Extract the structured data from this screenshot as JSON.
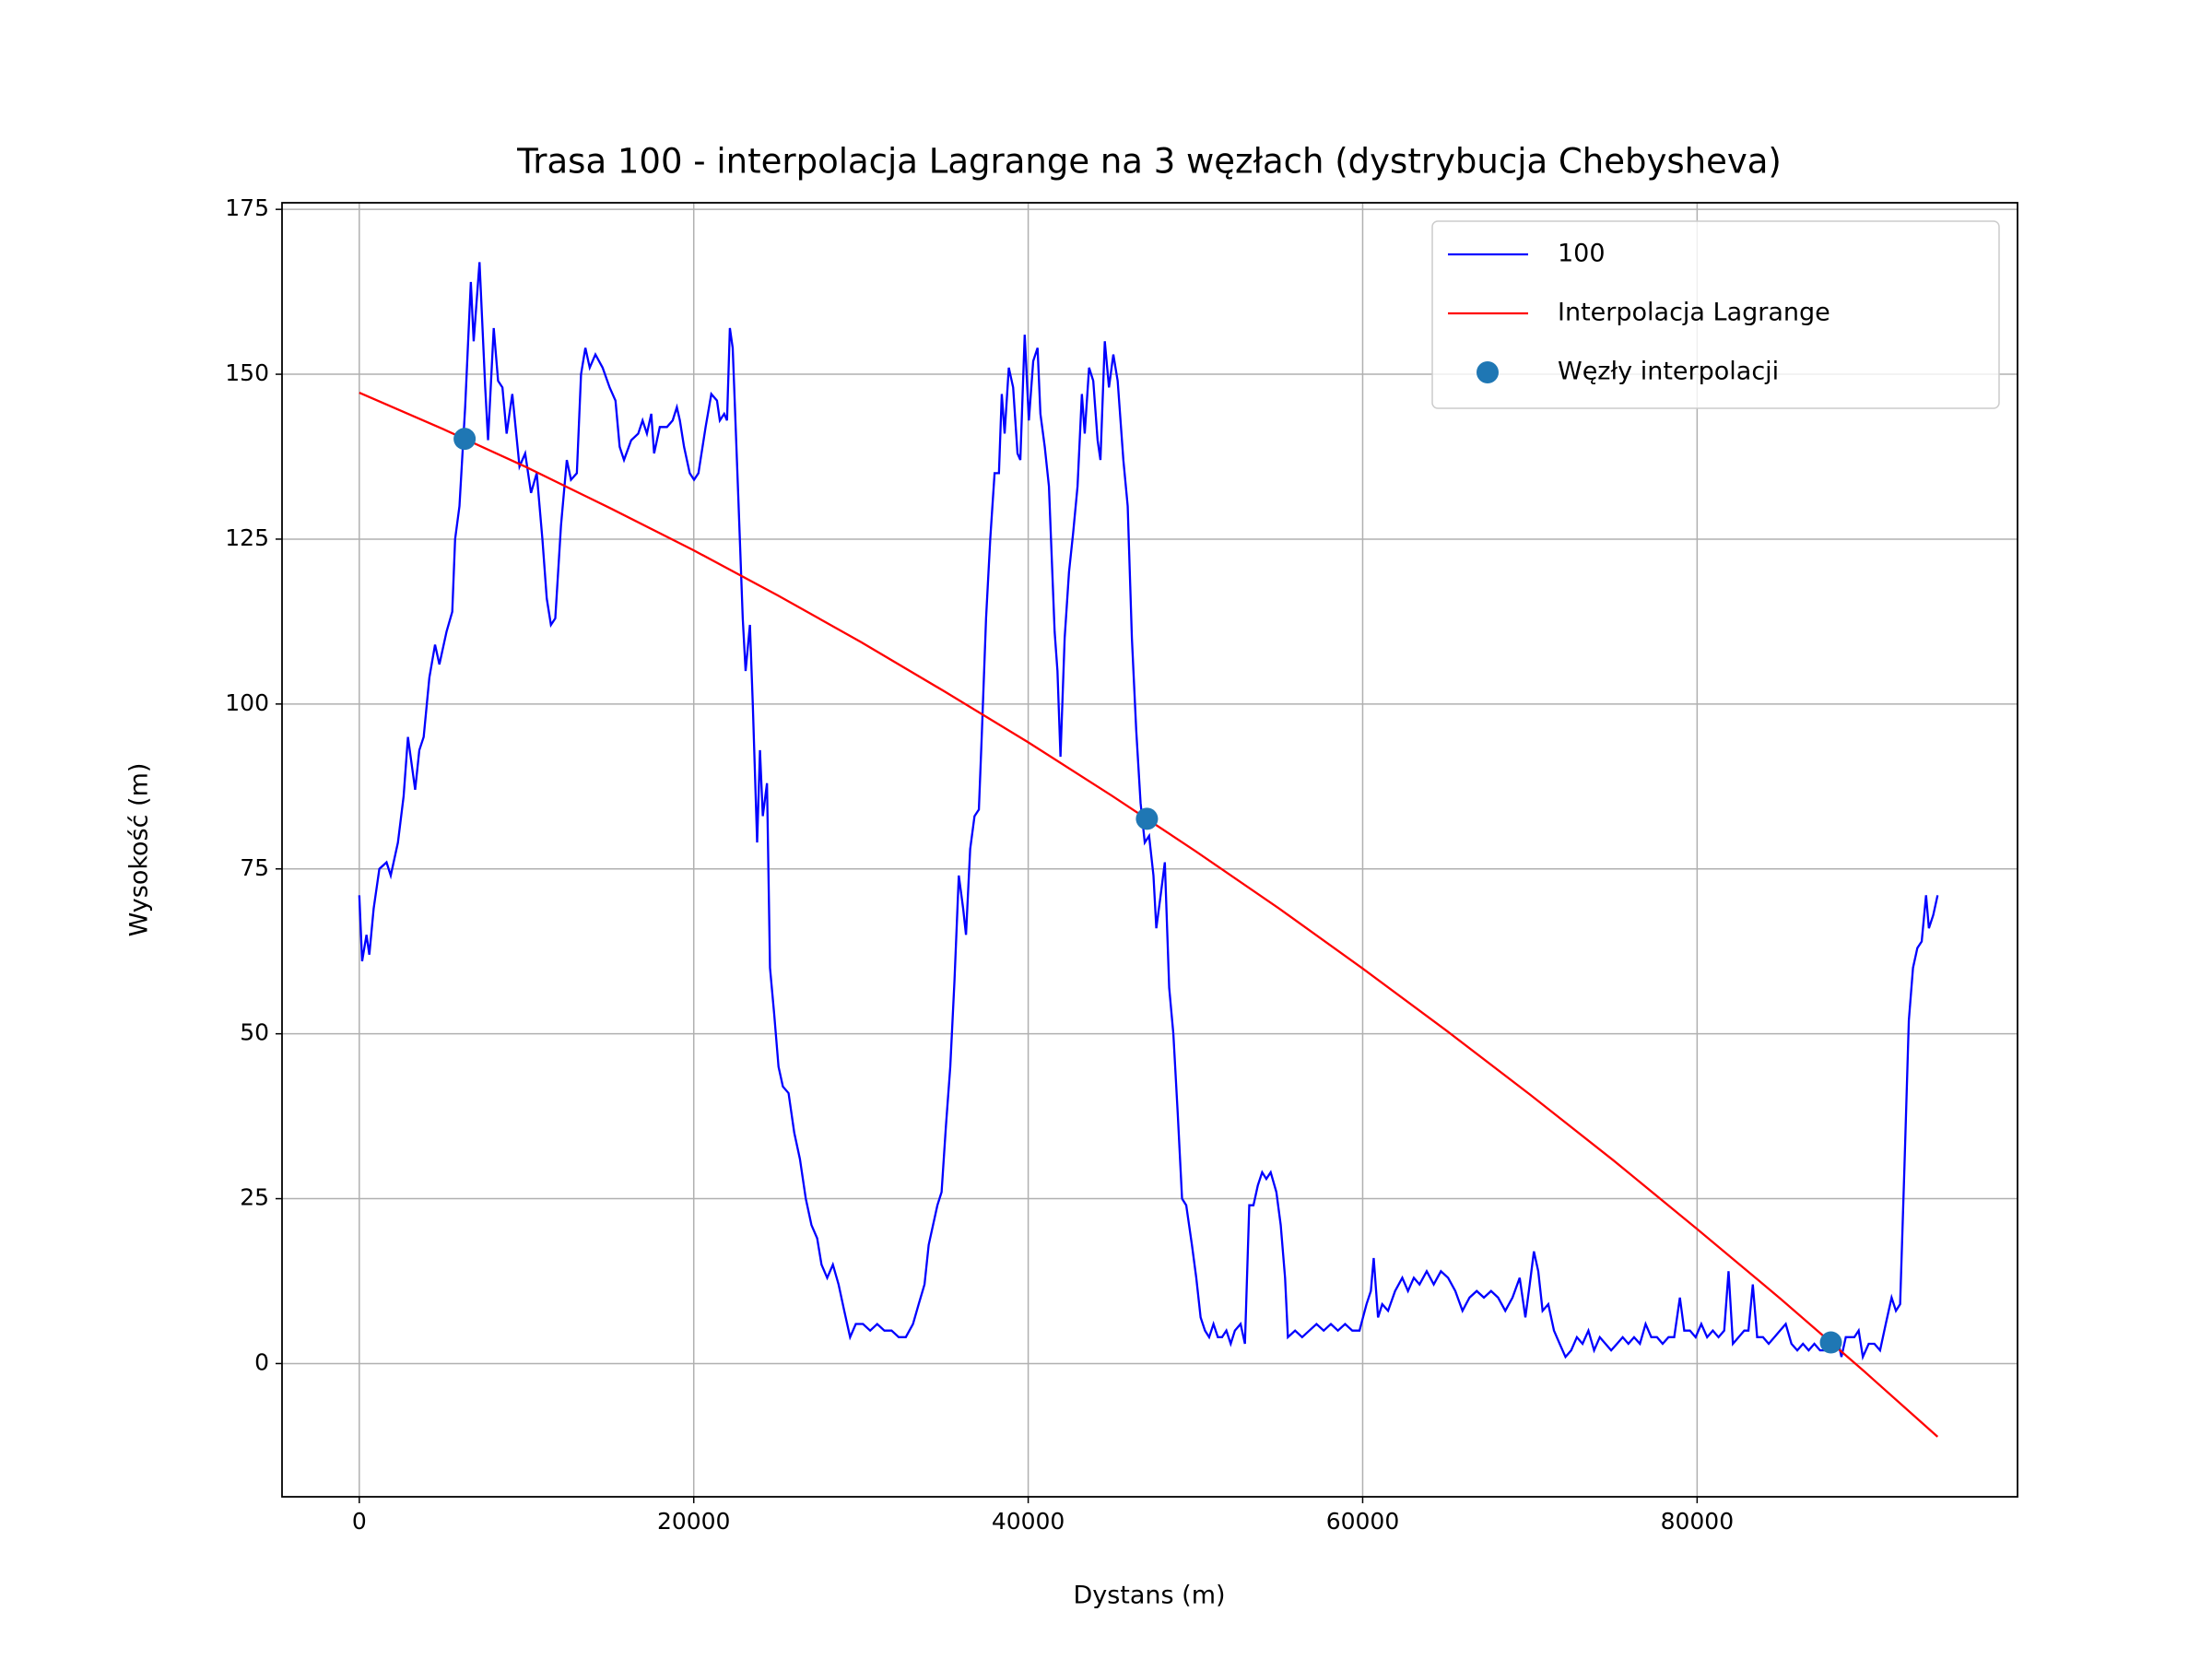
{
  "chart_data": {
    "type": "line",
    "title": "Trasa 100 - interpolacja Lagrange na 3 węzłach (dystrybucja Chebysheva)",
    "xlabel": "Dystans (m)",
    "ylabel": "Wysokość (m)",
    "xlim": [
      -4620,
      99160
    ],
    "ylim": [
      -20.2,
      176
    ],
    "xticks": [
      0,
      20000,
      40000,
      60000,
      80000
    ],
    "yticks": [
      0,
      25,
      50,
      75,
      100,
      125,
      150,
      175
    ],
    "grid": true,
    "legend": "upper right",
    "series": [
      {
        "name": "100",
        "type": "line",
        "color": "#0000ff",
        "x": [
          0,
          170,
          430,
          600,
          860,
          1200,
          1630,
          1880,
          2310,
          2650,
          2910,
          3340,
          3590,
          3850,
          4190,
          4530,
          4790,
          5220,
          5560,
          5730,
          5990,
          6330,
          6670,
          6840,
          7190,
          7530,
          7700,
          8040,
          8300,
          8560,
          8810,
          9150,
          9580,
          9920,
          10270,
          10610,
          10950,
          11210,
          11460,
          11720,
          12060,
          12410,
          12660,
          13010,
          13260,
          13520,
          13780,
          14120,
          14550,
          14970,
          15320,
          15570,
          15830,
          16260,
          16680,
          16940,
          17200,
          17460,
          17630,
          17970,
          18400,
          18740,
          18990,
          19170,
          19420,
          19760,
          20020,
          20280,
          20710,
          21050,
          21390,
          21560,
          21820,
          21990,
          22160,
          22330,
          22670,
          22930,
          23100,
          23360,
          23530,
          23790,
          23960,
          24130,
          24380,
          24560,
          24810,
          25070,
          25330,
          25670,
          26010,
          26350,
          26700,
          27040,
          27380,
          27640,
          27980,
          28320,
          28660,
          29000,
          29350,
          29690,
          30120,
          30550,
          30970,
          31400,
          31830,
          32260,
          32680,
          33110,
          33450,
          33800,
          34050,
          34310,
          34570,
          34820,
          35080,
          35340,
          35590,
          35850,
          36110,
          36280,
          36530,
          36790,
          37050,
          37220,
          37480,
          37730,
          37990,
          38250,
          38420,
          38590,
          38840,
          39100,
          39360,
          39530,
          39790,
          40040,
          40300,
          40560,
          40730,
          40990,
          41240,
          41580,
          41750,
          41930,
          42180,
          42440,
          42690,
          42950,
          43210,
          43380,
          43640,
          43890,
          44150,
          44320,
          44580,
          44830,
          45090,
          45350,
          45690,
          45950,
          46200,
          46460,
          46720,
          46970,
          47230,
          47490,
          47660,
          47920,
          48170,
          48430,
          48680,
          48940,
          49200,
          49450,
          49790,
          50050,
          50310,
          50570,
          50820,
          51080,
          51340,
          51590,
          51850,
          52110,
          52360,
          52700,
          52960,
          53220,
          53470,
          53730,
          53990,
          54240,
          54500,
          54840,
          55100,
          55360,
          55530,
          55960,
          56380,
          56810,
          57240,
          57670,
          58100,
          58520,
          58950,
          59380,
          59810,
          60230,
          60490,
          60660,
          60920,
          61170,
          61520,
          61940,
          62370,
          62710,
          63060,
          63400,
          63830,
          64250,
          64680,
          65110,
          65540,
          65970,
          66390,
          66820,
          67250,
          67680,
          68100,
          68530,
          68960,
          69390,
          69730,
          69990,
          70240,
          70500,
          70760,
          71100,
          71440,
          71780,
          72130,
          72470,
          72810,
          73150,
          73500,
          73840,
          74180,
          74520,
          74860,
          75210,
          75550,
          75890,
          76230,
          76580,
          76920,
          77260,
          77600,
          77940,
          78290,
          78630,
          78970,
          79230,
          79570,
          79910,
          80250,
          80600,
          80940,
          81280,
          81620,
          81880,
          82140,
          82480,
          82820,
          83070,
          83330,
          83590,
          83940,
          84280,
          84620,
          84960,
          85300,
          85640,
          85990,
          86330,
          86670,
          87010,
          87350,
          87690,
          88040,
          88380,
          88630,
          88890,
          89140,
          89400,
          89660,
          89910,
          90260,
          90600,
          90940,
          91280,
          91630,
          91890,
          92140,
          92400,
          92660,
          92910,
          93170,
          93430,
          93690,
          93860,
          94120,
          94380
        ],
        "values": [
          71,
          61,
          65,
          62,
          69,
          75,
          76,
          74,
          79,
          86,
          95,
          87,
          93,
          95,
          104,
          109,
          106,
          111,
          114,
          125,
          130,
          145,
          164,
          155,
          167,
          148,
          140,
          157,
          149,
          148,
          141,
          147,
          136,
          138,
          132,
          135,
          125,
          116,
          112,
          113,
          127,
          137,
          134,
          135,
          150,
          154,
          151,
          153,
          151,
          148,
          146,
          139,
          137,
          140,
          141,
          143,
          141,
          144,
          138,
          142,
          142,
          143,
          145,
          143,
          139,
          135,
          134,
          135,
          142,
          147,
          146,
          143,
          144,
          143,
          157,
          154,
          131,
          113,
          105,
          112,
          100,
          79,
          93,
          83,
          88,
          60,
          53,
          45,
          42,
          41,
          35,
          31,
          25,
          21,
          19,
          15,
          13,
          15,
          12,
          8,
          4,
          6,
          6,
          5,
          6,
          5,
          5,
          4,
          4,
          6,
          9,
          12,
          18,
          21,
          24,
          26,
          36,
          45,
          58,
          74,
          69,
          65,
          78,
          83,
          84,
          95,
          113,
          125,
          135,
          135,
          147,
          141,
          151,
          148,
          138,
          137,
          156,
          143,
          152,
          154,
          144,
          139,
          133,
          111,
          105,
          92,
          110,
          120,
          126,
          133,
          147,
          141,
          151,
          149,
          140,
          137,
          155,
          148,
          153,
          149,
          137,
          130,
          110,
          96,
          85,
          79,
          80,
          74,
          66,
          71,
          76,
          57,
          50,
          38,
          25,
          24,
          18,
          13,
          7,
          5,
          4,
          6,
          4,
          4,
          5,
          3,
          5,
          6,
          3,
          24,
          24,
          27,
          29,
          28,
          29,
          26,
          21,
          13,
          4,
          5,
          4,
          5,
          6,
          5,
          6,
          5,
          6,
          5,
          5,
          9,
          11,
          16,
          7,
          9,
          8,
          11,
          13,
          11,
          13,
          12,
          14,
          12,
          14,
          13,
          11,
          8,
          10,
          11,
          10,
          11,
          10,
          8,
          10,
          13,
          7,
          12,
          17,
          14,
          8,
          9,
          5,
          3,
          1,
          2,
          4,
          3,
          5,
          2,
          4,
          3,
          2,
          3,
          4,
          3,
          4,
          3,
          6,
          4,
          4,
          3,
          4,
          4,
          10,
          5,
          5,
          4,
          6,
          4,
          5,
          4,
          5,
          14,
          3,
          4,
          5,
          5,
          12,
          4,
          4,
          3,
          4,
          5,
          6,
          3,
          2,
          3,
          2,
          3,
          2,
          2,
          3,
          4,
          1,
          4,
          4,
          4,
          5,
          1,
          3,
          3,
          2,
          6,
          10,
          8,
          9,
          30,
          52,
          60,
          63,
          64,
          71,
          66,
          68,
          71
        ]
      },
      {
        "name": "Interpolacja Lagrange",
        "type": "line",
        "color": "#ff0000",
        "x": [
          0,
          5000,
          10000,
          15000,
          20000,
          25000,
          30000,
          35000,
          40000,
          45000,
          50000,
          55000,
          60000,
          65000,
          70000,
          75000,
          80000,
          85000,
          90000,
          94380
        ],
        "values": [
          147.2,
          141.7,
          135.9,
          129.7,
          123.3,
          116.5,
          109.4,
          101.9,
          94.2,
          86.1,
          77.7,
          69.0,
          59.9,
          50.5,
          40.8,
          30.8,
          20.4,
          9.8,
          -1.2,
          -11.1
        ]
      },
      {
        "name": "Węzły interpolacji",
        "type": "scatter",
        "color": "#1f77b4",
        "x": [
          6300,
          47100,
          88000
        ],
        "values": [
          140.2,
          82.6,
          3.2
        ]
      }
    ]
  }
}
